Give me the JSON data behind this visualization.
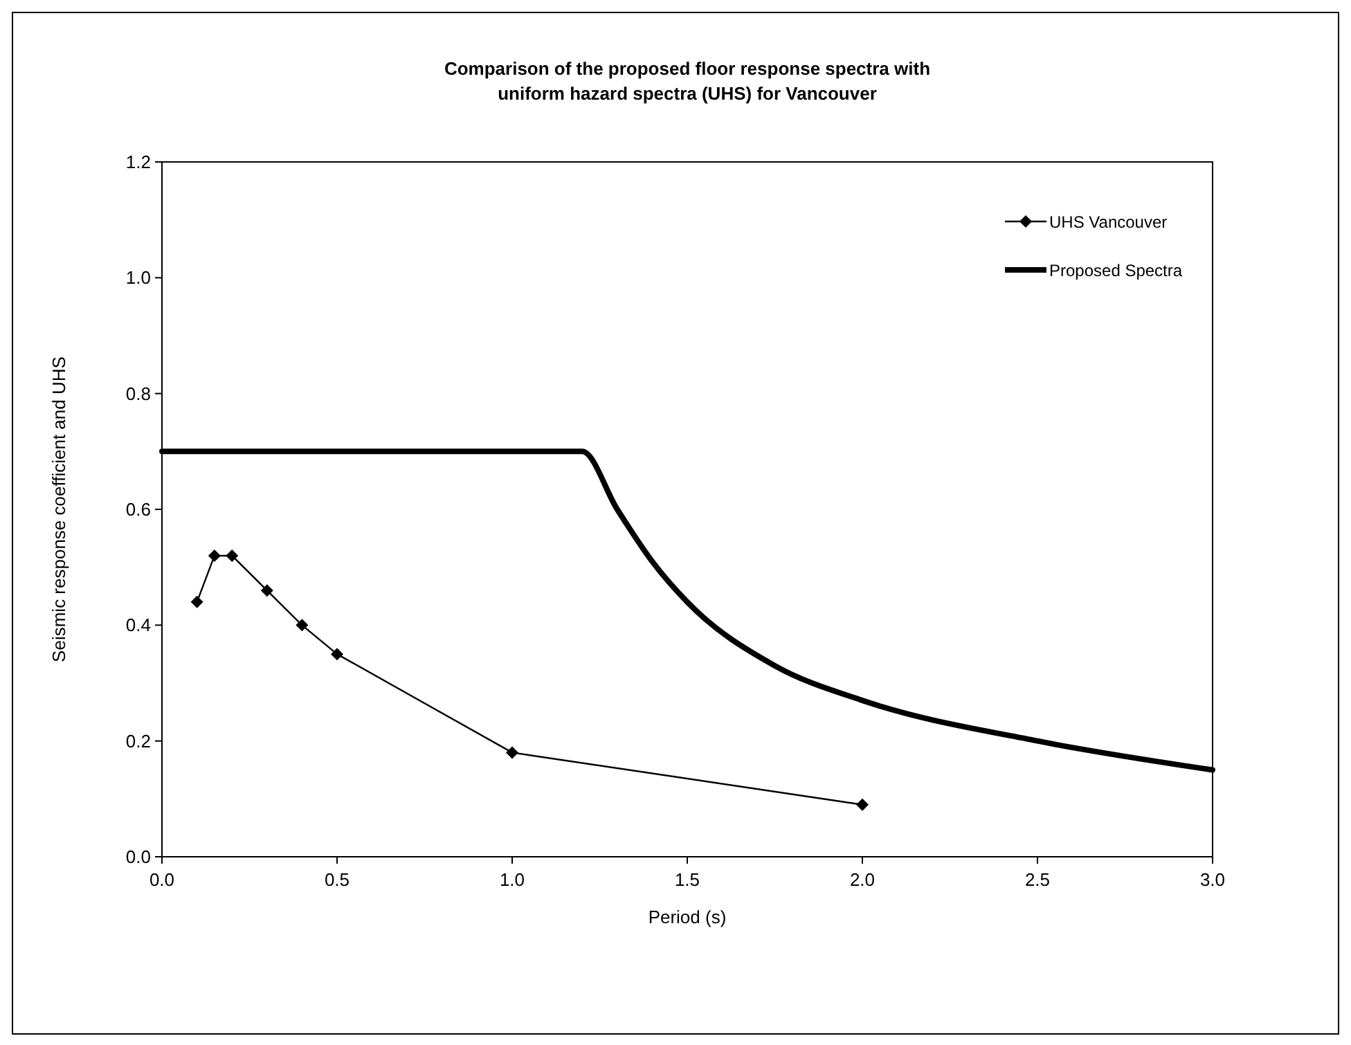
{
  "chart_data": {
    "type": "line",
    "title": "Comparison of the proposed floor response spectra with\nuniform hazard spectra (UHS) for Vancouver",
    "xlabel": "Period (s)",
    "ylabel": "Seismic response coefficient and UHS",
    "xlim": [
      0,
      3
    ],
    "xticks": [
      {
        "value": 0,
        "label": "0.0"
      },
      {
        "value": 0.5,
        "label": "0.5"
      },
      {
        "value": 1,
        "label": "1.0"
      },
      {
        "value": 1.5,
        "label": "1.5"
      },
      {
        "value": 2,
        "label": "2.0"
      },
      {
        "value": 2.5,
        "label": "2.5"
      },
      {
        "value": 3,
        "label": "3.0"
      }
    ],
    "ylim": [
      0,
      1.2
    ],
    "yticks": [
      {
        "value": 0,
        "label": "0.0"
      },
      {
        "value": 0.2,
        "label": "0.2"
      },
      {
        "value": 0.4,
        "label": "0.4"
      },
      {
        "value": 0.6,
        "label": "0.6"
      },
      {
        "value": 0.8,
        "label": "0.8"
      },
      {
        "value": 1,
        "label": "1.0"
      },
      {
        "value": 1.2,
        "label": "1.2"
      }
    ],
    "grid": false,
    "legend": "top right",
    "series": [
      {
        "name": "UHS Vancouver",
        "color": "#000000",
        "marker": "diamond",
        "x": [
          0.1,
          0.15,
          0.2,
          0.3,
          0.4,
          0.5,
          1.0,
          2.0
        ],
        "values": [
          0.44,
          0.52,
          0.52,
          0.46,
          0.4,
          0.35,
          0.18,
          0.09
        ]
      },
      {
        "name": "Proposed Spectra",
        "color": "#000000",
        "marker": "none",
        "x": [
          0,
          1.2,
          1.3,
          1.4,
          1.5,
          1.75,
          2.0,
          2.5,
          3.0
        ],
        "values": [
          0.7,
          0.7,
          0.6,
          0.51,
          0.44,
          0.33,
          0.27,
          0.2,
          0.15
        ]
      }
    ]
  }
}
